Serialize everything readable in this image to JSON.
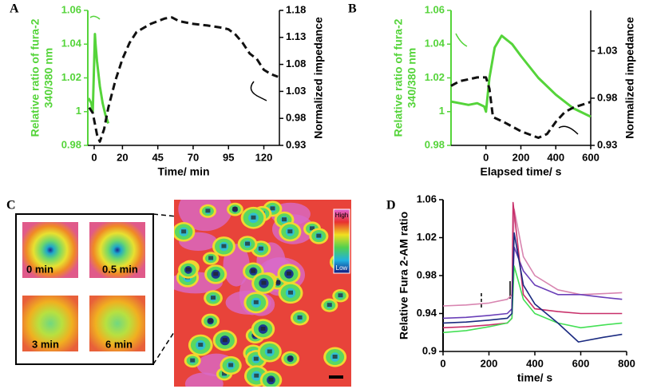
{
  "chart_data": [
    {
      "type": "line",
      "label": "A",
      "xlabel": "Time/ min",
      "ylabel": [
        "Relative ratio of fura-2",
        "340/380 nm"
      ],
      "y2label": "Normalized impedance",
      "ylabel_color": "#55d43a",
      "xlim": [
        -4.5,
        131
      ],
      "xticks": [
        0,
        20,
        45,
        70,
        95,
        120
      ],
      "ylim": [
        0.98,
        1.06
      ],
      "yticks": [
        0.98,
        1,
        1.02,
        1.04,
        1.06
      ],
      "y2lim": [
        0.93,
        1.18
      ],
      "y2ticks": [
        0.93,
        0.98,
        1.03,
        1.08,
        1.13,
        1.18
      ],
      "series": [
        {
          "color": "#55d43a",
          "linestyle": "solid",
          "x": [
            -4,
            -2,
            -1,
            0,
            0.5,
            1,
            2,
            4,
            6,
            8,
            10
          ],
          "values": [
            1.008,
            1.005,
            1.0,
            1.03,
            1.046,
            1.04,
            1.03,
            1.015,
            1.005,
            0.998,
            0.993
          ]
        },
        {
          "color": "#111111",
          "linestyle": "dashed",
          "axis": "y2",
          "x": [
            -3.5,
            -1,
            2,
            4,
            7,
            10,
            15,
            20,
            25,
            30,
            40,
            50,
            55,
            60,
            70,
            80,
            90,
            95,
            100,
            105,
            110,
            115,
            120,
            125,
            130
          ],
          "values": [
            1.0,
            0.99,
            0.95,
            0.937,
            0.96,
            1.0,
            1.05,
            1.09,
            1.12,
            1.14,
            1.155,
            1.165,
            1.167,
            1.16,
            1.155,
            1.152,
            1.148,
            1.145,
            1.135,
            1.12,
            1.1,
            1.09,
            1.07,
            1.062,
            1.057
          ]
        }
      ]
    },
    {
      "type": "line",
      "label": "B",
      "xlabel": "Elapsed time/ s",
      "ylabel": [
        "Relative ratio of fura-2",
        "340/380 nm"
      ],
      "y2label": "Normalized impedance",
      "ylabel_color": "#55d43a",
      "xlim": [
        -200,
        600
      ],
      "xticks": [
        0,
        200,
        400,
        600
      ],
      "ylim": [
        0.98,
        1.06
      ],
      "yticks": [
        0.98,
        1,
        1.02,
        1.04,
        1.06
      ],
      "y2lim": [
        0.93,
        1.073
      ],
      "y2ticks": [
        0.93,
        0.98,
        1.03
      ],
      "series": [
        {
          "color": "#55d43a",
          "linestyle": "solid",
          "x": [
            -200,
            -150,
            -100,
            -50,
            -10,
            0,
            20,
            50,
            90,
            150,
            200,
            300,
            400,
            500,
            600
          ],
          "values": [
            1.006,
            1.005,
            1.004,
            1.005,
            1.003,
            1.0,
            1.02,
            1.038,
            1.045,
            1.04,
            1.033,
            1.02,
            1.01,
            1.002,
            0.997
          ]
        },
        {
          "color": "#111111",
          "linestyle": "dashed",
          "axis": "y2",
          "x": [
            -200,
            -150,
            -100,
            -50,
            0,
            20,
            40,
            100,
            200,
            300,
            350,
            400,
            450,
            500,
            600
          ],
          "values": [
            0.993,
            0.998,
            1.0,
            1.002,
            1.002,
            0.99,
            0.96,
            0.955,
            0.945,
            0.938,
            0.942,
            0.955,
            0.965,
            0.97,
            0.976
          ]
        }
      ]
    },
    {
      "type": "line",
      "label": "D",
      "xlabel": "time/ s",
      "ylabel": [
        "Relative Fura 2-AM ratio"
      ],
      "xlim": [
        0,
        800
      ],
      "xticks": [
        0,
        200,
        400,
        600,
        800
      ],
      "ylim": [
        0.9,
        1.06
      ],
      "yticks": [
        0.9,
        0.94,
        0.98,
        1.02,
        1.06
      ],
      "series": [
        {
          "color": "#d885b0",
          "linestyle": "solid",
          "x": [
            0,
            100,
            200,
            280,
            300,
            310,
            350,
            400,
            500,
            600,
            700,
            780
          ],
          "values": [
            0.948,
            0.949,
            0.951,
            0.955,
            0.96,
            1.05,
            1.0,
            0.98,
            0.965,
            0.96,
            0.961,
            0.962
          ]
        },
        {
          "color": "#6a3fb8",
          "linestyle": "solid",
          "x": [
            0,
            100,
            200,
            280,
            300,
            310,
            350,
            400,
            500,
            600,
            700,
            780
          ],
          "values": [
            0.935,
            0.936,
            0.938,
            0.94,
            0.945,
            1.01,
            0.985,
            0.97,
            0.96,
            0.96,
            0.957,
            0.955
          ]
        },
        {
          "color": "#c8306a",
          "linestyle": "solid",
          "x": [
            0,
            100,
            200,
            280,
            300,
            305,
            350,
            400,
            500,
            600,
            700,
            780
          ],
          "values": [
            0.925,
            0.926,
            0.928,
            0.93,
            0.935,
            1.057,
            0.96,
            0.945,
            0.942,
            0.94,
            0.94,
            0.94
          ]
        },
        {
          "color": "#44e055",
          "linestyle": "solid",
          "x": [
            0,
            100,
            200,
            280,
            300,
            310,
            350,
            400,
            500,
            600,
            700,
            780
          ],
          "values": [
            0.92,
            0.922,
            0.926,
            0.93,
            0.935,
            0.99,
            0.955,
            0.94,
            0.93,
            0.925,
            0.928,
            0.93
          ]
        },
        {
          "color": "#1a2a80",
          "linestyle": "solid",
          "x": [
            0,
            100,
            200,
            280,
            300,
            310,
            350,
            400,
            500,
            590,
            700,
            780
          ],
          "values": [
            0.93,
            0.931,
            0.933,
            0.935,
            0.94,
            1.025,
            0.97,
            0.95,
            0.93,
            0.91,
            0.915,
            0.918
          ]
        }
      ]
    }
  ],
  "image_panel": {
    "label": "C",
    "insets": [
      "0 min",
      "0.5 min",
      "3 min",
      "6 min"
    ],
    "colorbar": {
      "high": "High",
      "low": "Low"
    }
  }
}
